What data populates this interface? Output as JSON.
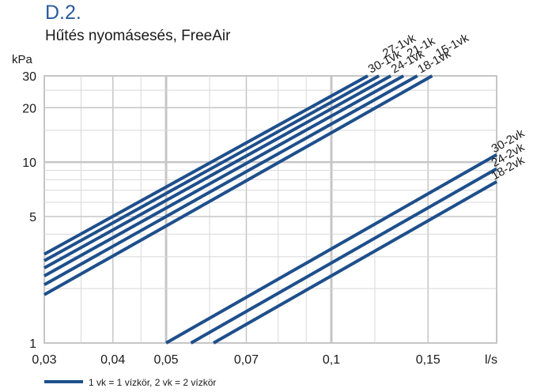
{
  "header": {
    "code": "D.2.",
    "title": "Hűtés nyomásesés, FreeAir"
  },
  "legend": {
    "text": "1 vk = 1 vízkör, 2 vk = 2 vízkör"
  },
  "colors": {
    "series": "#1e4f8c",
    "grid_minor": "#d8d8d8",
    "grid_major": "#c6c6c6",
    "title_code": "#2a5a9e"
  },
  "chart_data": {
    "type": "line",
    "xlabel": "l/s",
    "ylabel": "kPa",
    "xscale": "log",
    "yscale": "log",
    "xlim": [
      0.03,
      0.2
    ],
    "ylim": [
      1,
      30
    ],
    "xticks": [
      0.03,
      0.04,
      0.05,
      0.07,
      0.1,
      0.15
    ],
    "xtick_labels": [
      "0,03",
      "0,04",
      "0,05",
      "0,07",
      "0,1",
      "0,15"
    ],
    "yticks": [
      1,
      5,
      10,
      20,
      30
    ],
    "ytick_labels": [
      "1",
      "5",
      "10",
      "20",
      "30"
    ],
    "grid": true,
    "legend_position": "bottom-left",
    "series": [
      {
        "name": "30-1vk",
        "x": [
          0.03,
          0.1165
        ],
        "y": [
          3.1,
          30
        ]
      },
      {
        "name": "27-1vk",
        "x": [
          0.03,
          0.1221
        ],
        "y": [
          2.85,
          30
        ]
      },
      {
        "name": "24-1vk",
        "x": [
          0.03,
          0.1283
        ],
        "y": [
          2.6,
          30
        ]
      },
      {
        "name": "21-1k",
        "x": [
          0.03,
          0.1353
        ],
        "y": [
          2.35,
          30
        ]
      },
      {
        "name": "18-1vk",
        "x": [
          0.03,
          0.1434
        ],
        "y": [
          2.1,
          30
        ]
      },
      {
        "name": "15-1vk",
        "x": [
          0.03,
          0.1526
        ],
        "y": [
          1.85,
          30
        ]
      },
      {
        "name": "30-2vk",
        "x": [
          0.05,
          0.2
        ],
        "y": [
          1,
          11.0
        ]
      },
      {
        "name": "24-2vk",
        "x": [
          0.0555,
          0.2
        ],
        "y": [
          1,
          9.2
        ]
      },
      {
        "name": "18-2vk",
        "x": [
          0.061,
          0.2
        ],
        "y": [
          1,
          7.8
        ]
      }
    ]
  }
}
